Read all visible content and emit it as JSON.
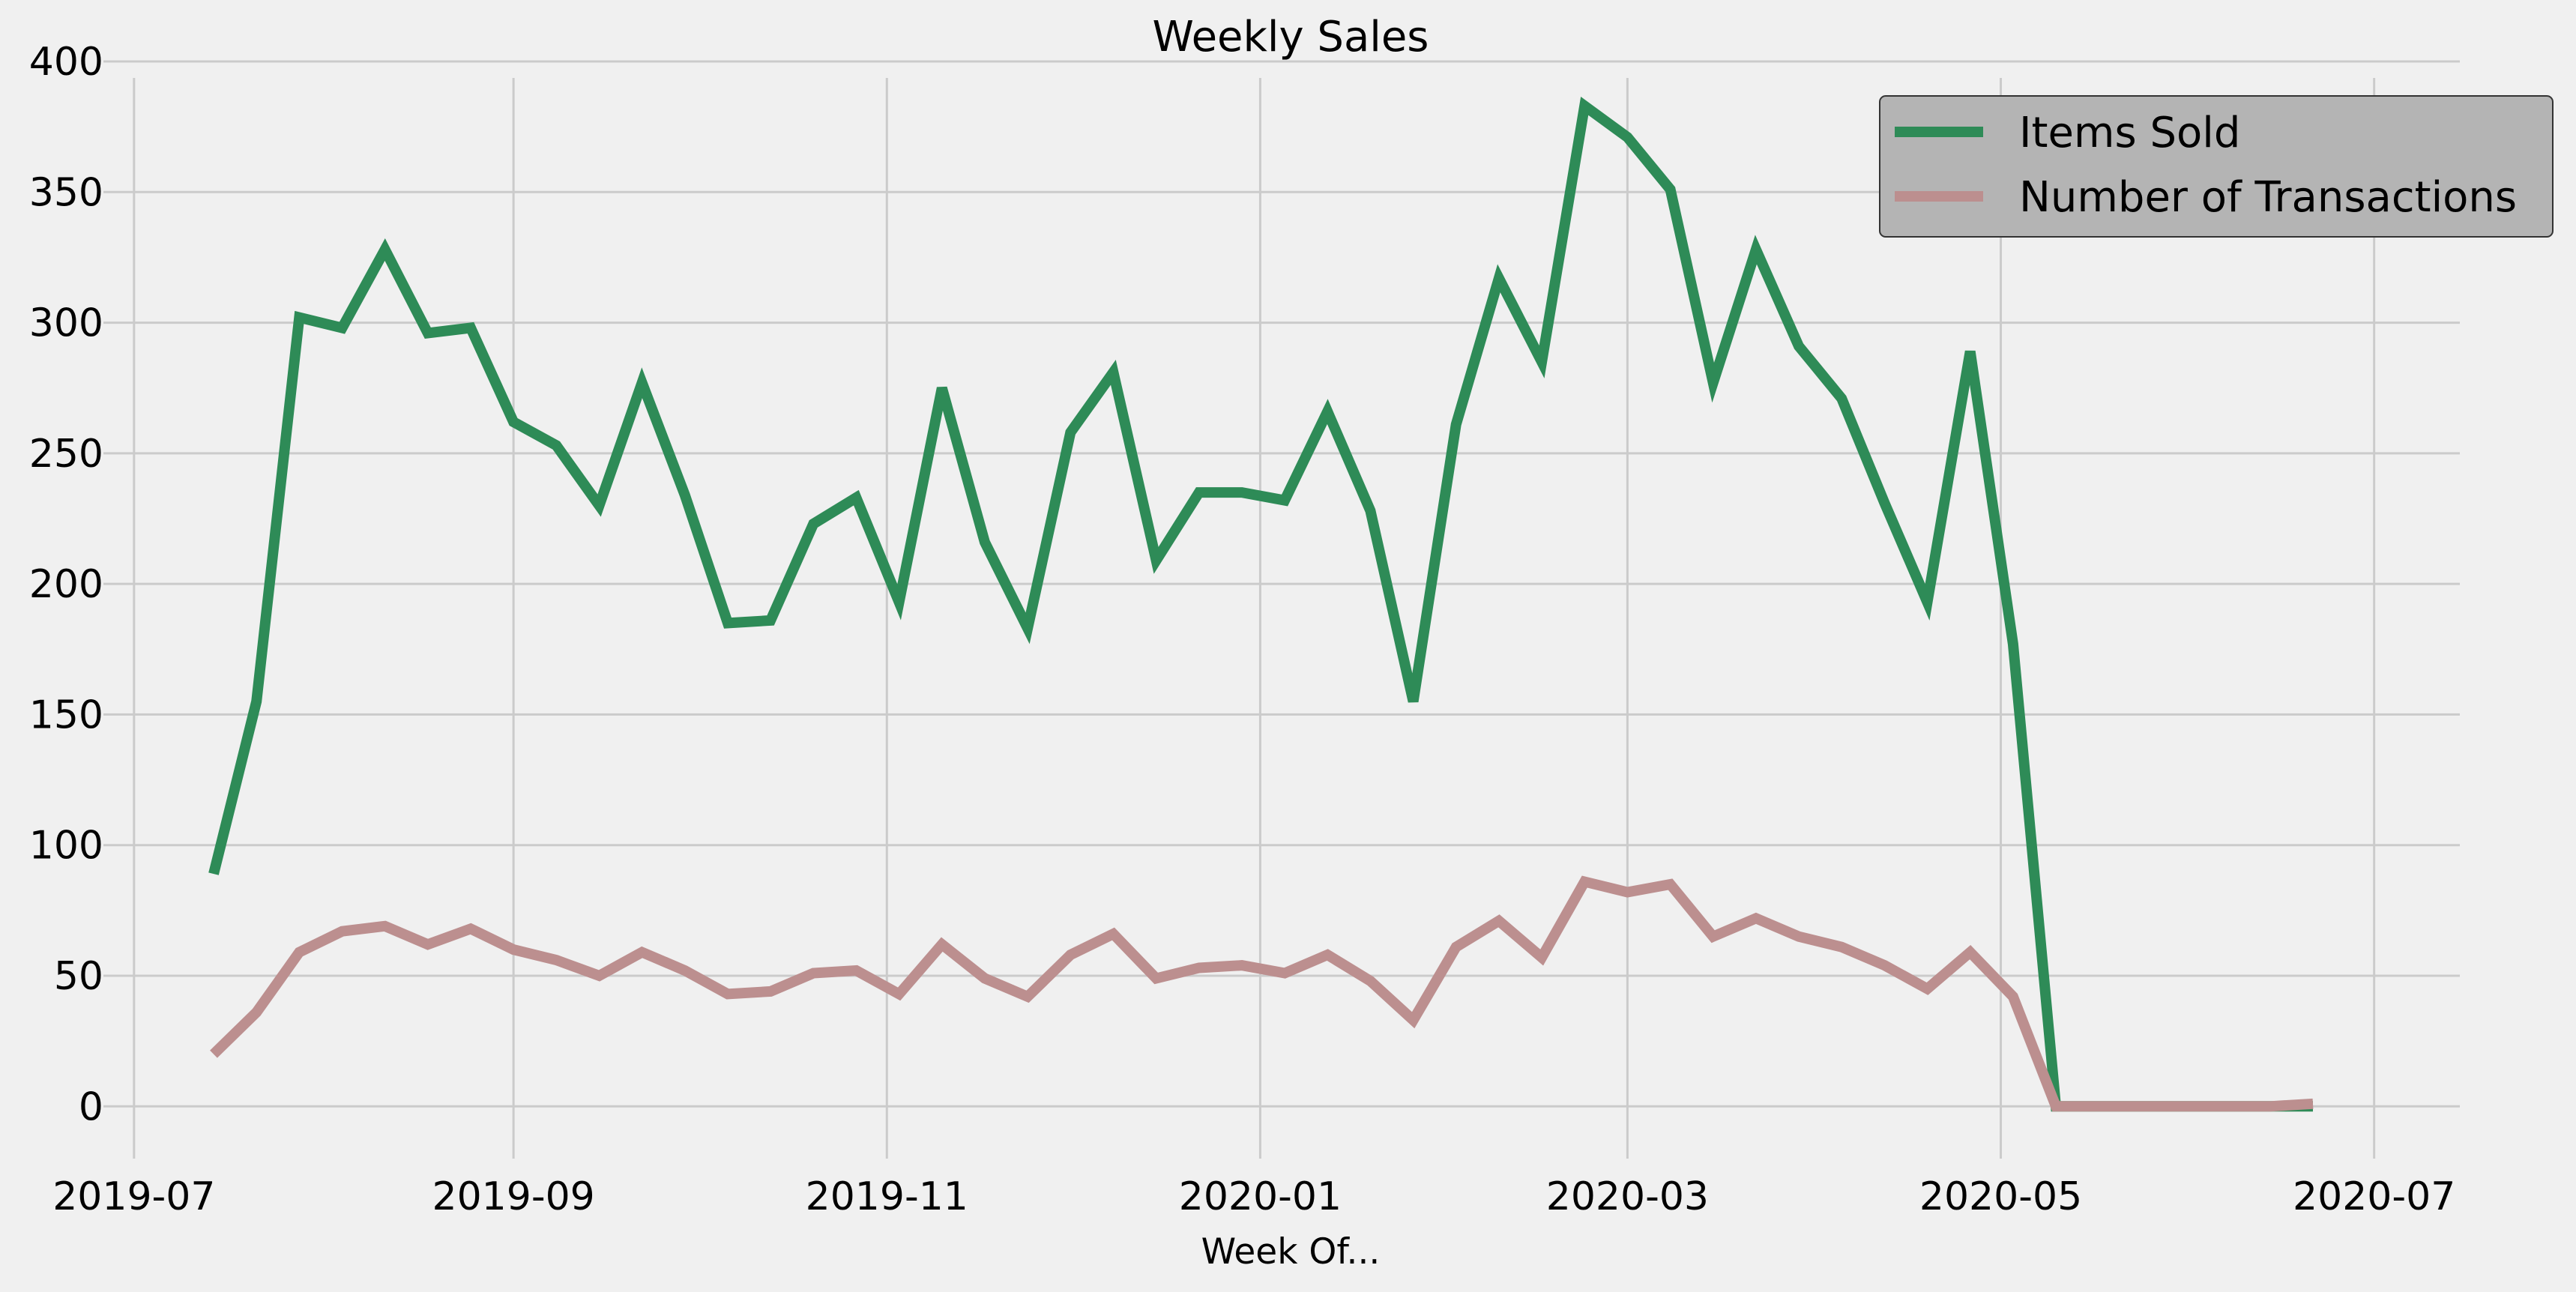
{
  "chart_data": {
    "type": "line",
    "title": "Weekly Sales",
    "xlabel": "Week Of...",
    "ylabel": "",
    "ylim": [
      -20,
      400
    ],
    "xlim": [
      "2019-06-26",
      "2020-07-15"
    ],
    "yticks": [
      0,
      50,
      100,
      150,
      200,
      250,
      300,
      350,
      400
    ],
    "xticks": [
      "2019-07-01",
      "2019-09-01",
      "2019-11-01",
      "2020-01-01",
      "2020-03-01",
      "2020-05-01",
      "2020-07-01"
    ],
    "xtick_labels": [
      "2019-07",
      "2019-09",
      "2019-11",
      "2020-01",
      "2020-03",
      "2020-05",
      "2020-07"
    ],
    "grid": true,
    "legend_position": "top-right",
    "x": [
      "2019-07-14",
      "2019-07-21",
      "2019-07-28",
      "2019-08-04",
      "2019-08-11",
      "2019-08-18",
      "2019-08-25",
      "2019-09-01",
      "2019-09-08",
      "2019-09-15",
      "2019-09-22",
      "2019-09-29",
      "2019-10-06",
      "2019-10-13",
      "2019-10-20",
      "2019-10-27",
      "2019-11-03",
      "2019-11-10",
      "2019-11-17",
      "2019-11-24",
      "2019-12-01",
      "2019-12-08",
      "2019-12-15",
      "2019-12-22",
      "2019-12-29",
      "2020-01-05",
      "2020-01-12",
      "2020-01-19",
      "2020-01-26",
      "2020-02-02",
      "2020-02-09",
      "2020-02-16",
      "2020-02-23",
      "2020-03-01",
      "2020-03-08",
      "2020-03-15",
      "2020-03-22",
      "2020-03-29",
      "2020-04-05",
      "2020-04-12",
      "2020-04-19",
      "2020-04-26",
      "2020-05-03",
      "2020-05-10",
      "2020-05-17",
      "2020-05-24",
      "2020-05-31",
      "2020-06-07",
      "2020-06-14",
      "2020-06-21"
    ],
    "series": [
      {
        "name": "Items Sold",
        "color": "#2e8b57",
        "values": [
          89,
          155,
          302,
          298,
          328,
          296,
          298,
          262,
          253,
          230,
          277,
          234,
          185,
          186,
          223,
          233,
          193,
          275,
          216,
          183,
          258,
          281,
          209,
          235,
          235,
          232,
          266,
          228,
          155,
          261,
          317,
          285,
          383,
          371,
          351,
          277,
          328,
          291,
          271,
          231,
          193,
          289,
          177,
          0,
          0,
          0,
          0,
          0,
          0,
          0
        ]
      },
      {
        "name": "Number of Transactions",
        "color": "#bc8f8f",
        "values": [
          20,
          36,
          59,
          67,
          69,
          62,
          68,
          60,
          56,
          50,
          59,
          52,
          43,
          44,
          51,
          52,
          43,
          62,
          49,
          42,
          58,
          66,
          49,
          53,
          54,
          51,
          58,
          48,
          33,
          61,
          71,
          57,
          86,
          82,
          85,
          65,
          72,
          65,
          61,
          54,
          45,
          59,
          42,
          0,
          0,
          0,
          0,
          0,
          0,
          1
        ]
      }
    ]
  }
}
